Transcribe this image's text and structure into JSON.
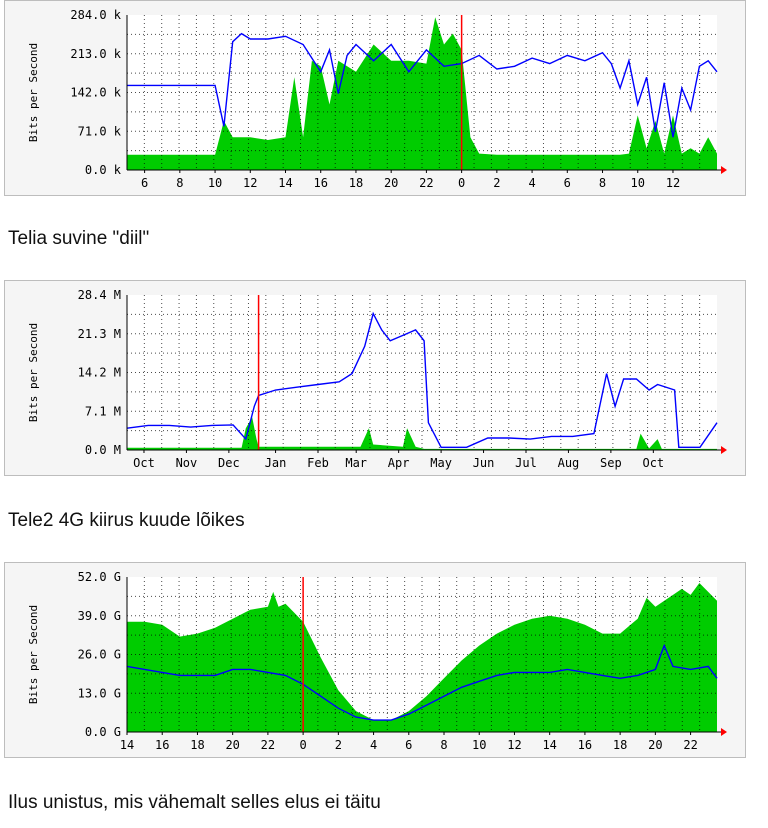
{
  "colors": {
    "in": "#00cc00",
    "out": "#0000ff",
    "marker": "#ff0000",
    "grid": "#000000",
    "bg": "#ffffff"
  },
  "captions": [
    "Telia suvine \"diil\"",
    "Tele2 4G kiirus kuude lõikes",
    "Ilus unistus, mis vähemalt selles elus ei täitu"
  ],
  "chart_data": [
    {
      "type": "area",
      "ylabel": "Bits per Second",
      "ylim": [
        0,
        284
      ],
      "y_ticks": [
        "0.0 k",
        "71.0 k",
        "142.0 k",
        "213.0 k",
        "284.0 k"
      ],
      "y_tick_values": [
        0,
        71,
        142,
        213,
        284
      ],
      "x_ticks": [
        "6",
        "8",
        "10",
        "12",
        "14",
        "16",
        "18",
        "20",
        "22",
        "0",
        "2",
        "4",
        "6",
        "8",
        "10",
        "12"
      ],
      "x_tick_pos": [
        1,
        3,
        5,
        7,
        9,
        11,
        13,
        15,
        17,
        19,
        21,
        23,
        25,
        27,
        29,
        31
      ],
      "xlim": [
        0,
        33.5
      ],
      "marker_x": 19,
      "series": [
        {
          "name": "",
          "kind": "area",
          "x": [
            0,
            5,
            5.5,
            6,
            7,
            8,
            9,
            9.5,
            10,
            10.5,
            11,
            11.5,
            12,
            13,
            14,
            15,
            16,
            17,
            17.5,
            18,
            18.5,
            19,
            19.5,
            20,
            21,
            22,
            23,
            24,
            25,
            26,
            27,
            28,
            28.5,
            29,
            29.5,
            30,
            30.5,
            31,
            31.5,
            32,
            32.5,
            33,
            33.5
          ],
          "values": [
            28,
            28,
            90,
            60,
            60,
            55,
            60,
            170,
            60,
            200,
            190,
            120,
            200,
            180,
            230,
            200,
            200,
            195,
            280,
            230,
            250,
            220,
            60,
            30,
            28,
            28,
            28,
            28,
            28,
            28,
            28,
            28,
            30,
            100,
            40,
            90,
            30,
            100,
            30,
            40,
            30,
            60,
            30
          ]
        },
        {
          "name": "",
          "kind": "line",
          "x": [
            0,
            1,
            2,
            3,
            4,
            5,
            5.5,
            6,
            6.5,
            7,
            8,
            9,
            10,
            11,
            11.5,
            12,
            12.5,
            13,
            14,
            15,
            16,
            17,
            18,
            19,
            20,
            21,
            22,
            23,
            24,
            25,
            26,
            27,
            27.5,
            28,
            28.5,
            29,
            29.5,
            30,
            30.5,
            31,
            31.5,
            32,
            32.5,
            33,
            33.5
          ],
          "values": [
            155,
            155,
            155,
            155,
            155,
            155,
            80,
            235,
            250,
            240,
            240,
            245,
            230,
            180,
            220,
            140,
            210,
            230,
            200,
            230,
            180,
            220,
            190,
            195,
            210,
            185,
            190,
            205,
            195,
            210,
            200,
            215,
            195,
            150,
            200,
            120,
            170,
            70,
            160,
            60,
            150,
            110,
            190,
            200,
            180
          ]
        }
      ]
    },
    {
      "type": "area",
      "ylabel": "Bits per Second",
      "ylim": [
        0,
        28.4
      ],
      "y_ticks": [
        "0.0 M",
        "7.1 M",
        "14.2 M",
        "21.3 M",
        "28.4 M"
      ],
      "y_tick_values": [
        0,
        7.1,
        14.2,
        21.3,
        28.4
      ],
      "x_ticks": [
        "Oct",
        "Nov",
        "Dec",
        "Jan",
        "Feb",
        "Mar",
        "Apr",
        "May",
        "Jun",
        "Jul",
        "Aug",
        "Sep",
        "Oct"
      ],
      "x_tick_pos": [
        0.4,
        1.4,
        2.4,
        3.5,
        4.5,
        5.4,
        6.4,
        7.4,
        8.4,
        9.4,
        10.4,
        11.4,
        12.4
      ],
      "xlim": [
        0,
        13.9
      ],
      "marker_x": 3.1,
      "series": [
        {
          "name": "",
          "kind": "area",
          "x": [
            0,
            2.7,
            2.8,
            2.95,
            3.05,
            3.1,
            5.5,
            5.7,
            5.8,
            6.5,
            6.6,
            6.8,
            7,
            12,
            12.1,
            12.3,
            12.5,
            12.6,
            13.5,
            13.9
          ],
          "values": [
            0.4,
            0.4,
            4,
            6,
            2,
            0.6,
            0.6,
            4,
            1,
            0.6,
            4,
            0.6,
            0.2,
            0.2,
            3,
            0.3,
            2,
            0.2,
            0.2,
            0.2
          ]
        },
        {
          "name": "",
          "kind": "line",
          "x": [
            0,
            0.5,
            1,
            1.5,
            2,
            2.5,
            2.8,
            3,
            3.1,
            3.5,
            4,
            4.5,
            5,
            5.3,
            5.6,
            5.8,
            6,
            6.2,
            6.5,
            6.8,
            7,
            7.1,
            7.4,
            7.8,
            8,
            8.5,
            9,
            9.5,
            10,
            10.5,
            11,
            11.3,
            11.5,
            11.7,
            12,
            12.3,
            12.5,
            12.9,
            13,
            13.5,
            13.9
          ],
          "values": [
            4,
            4.5,
            4.5,
            4.2,
            4.5,
            4.6,
            2,
            8,
            10,
            11,
            11.5,
            12,
            12.5,
            14,
            19,
            25,
            22,
            20,
            21,
            22,
            20,
            5,
            0.5,
            0.5,
            0.5,
            2.2,
            2.2,
            2,
            2.5,
            2.5,
            3,
            14,
            8,
            13,
            13,
            11,
            12,
            11,
            0.5,
            0.5,
            5
          ]
        }
      ]
    },
    {
      "type": "area",
      "ylabel": "Bits per Second",
      "ylim": [
        0,
        52
      ],
      "y_ticks": [
        "0.0 G",
        "13.0 G",
        "26.0 G",
        "39.0 G",
        "52.0 G"
      ],
      "y_tick_values": [
        0,
        13,
        26,
        39,
        52
      ],
      "x_ticks": [
        "14",
        "16",
        "18",
        "20",
        "22",
        "0",
        "2",
        "4",
        "6",
        "8",
        "10",
        "12",
        "14",
        "16",
        "18",
        "20",
        "22"
      ],
      "x_tick_pos": [
        0,
        2,
        4,
        6,
        8,
        10,
        12,
        14,
        16,
        18,
        20,
        22,
        24,
        26,
        28,
        30,
        32
      ],
      "xlim": [
        0,
        33.5
      ],
      "marker_x": 10,
      "series": [
        {
          "name": "",
          "kind": "area",
          "x": [
            0,
            1,
            2,
            3,
            4,
            5,
            6,
            7,
            8,
            8.3,
            8.6,
            9,
            10,
            11,
            12,
            13,
            14,
            15,
            16,
            17,
            18,
            19,
            20,
            21,
            22,
            23,
            24,
            25,
            26,
            27,
            28,
            29,
            29.5,
            30,
            31,
            31.5,
            32,
            32.5,
            33,
            33.5
          ],
          "values": [
            37,
            37,
            36,
            32,
            33,
            35,
            38,
            41,
            42,
            47,
            42,
            43,
            37,
            25,
            14,
            7,
            4,
            4,
            7,
            12,
            18,
            24,
            29,
            33,
            36,
            38,
            39,
            38,
            36,
            33,
            33,
            38,
            45,
            42,
            46,
            48,
            46,
            50,
            47,
            44
          ]
        },
        {
          "name": "",
          "kind": "line",
          "x": [
            0,
            1,
            2,
            3,
            4,
            5,
            6,
            7,
            8,
            9,
            10,
            11,
            12,
            13,
            14,
            15,
            16,
            17,
            18,
            19,
            20,
            21,
            22,
            23,
            24,
            25,
            26,
            27,
            28,
            29,
            30,
            30.5,
            31,
            32,
            33,
            33.5
          ],
          "values": [
            22,
            21,
            20,
            19,
            19,
            19,
            21,
            21,
            20,
            19,
            16,
            12,
            8,
            5,
            4,
            4,
            6,
            9,
            12,
            15,
            17,
            19,
            20,
            20,
            20,
            21,
            20,
            19,
            18,
            19,
            21,
            29,
            22,
            21,
            22,
            18
          ]
        }
      ]
    }
  ]
}
